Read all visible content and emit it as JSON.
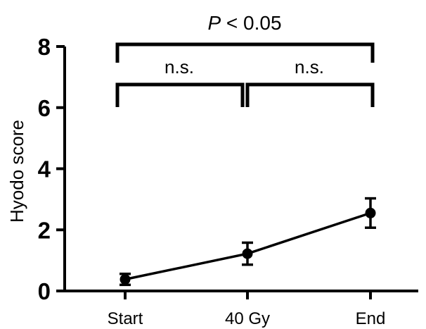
{
  "chart_data": {
    "type": "line",
    "categories": [
      "Start",
      "40 Gy",
      "End"
    ],
    "series": [
      {
        "values": [
          0.38,
          1.22,
          2.55
        ],
        "error": [
          0.18,
          0.36,
          0.48
        ]
      }
    ],
    "ylabel": "Hyodo score",
    "ylim": [
      0,
      8
    ],
    "yticks": [
      "0",
      "2",
      "4",
      "6",
      "8"
    ],
    "grid": false,
    "annotations": {
      "overall": {
        "p_italic": "P",
        "p_rest": " < 0.05",
        "from": "Start",
        "to": "End"
      },
      "pairs": [
        {
          "label": "n.s.",
          "from": "Start",
          "to": "40 Gy"
        },
        {
          "label": "n.s.",
          "from": "40 Gy",
          "to": "End"
        }
      ]
    },
    "color": "#000000"
  }
}
